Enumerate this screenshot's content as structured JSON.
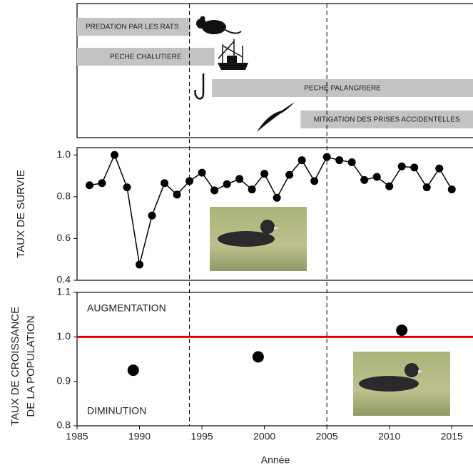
{
  "chart_data": [
    {
      "type": "timeline",
      "xlim": [
        1985,
        2016.7
      ],
      "events": [
        {
          "label": "PREDATION PAR LES RATS",
          "start": 1985,
          "end": 1994.1
        },
        {
          "label": "PECHE CHALUTIERE",
          "start": 1985,
          "end": 1996
        },
        {
          "label": "PECHE PALANGRIERE",
          "start": 1995.8,
          "end": 2016.7
        },
        {
          "label": "MITIGATION DES PRISES ACCIDENTELLES",
          "start": 2002.9,
          "end": 2016.7
        }
      ]
    },
    {
      "type": "line",
      "ylabel": "TAUX DE SURVIE",
      "xlim": [
        1985,
        2016.7
      ],
      "ylim": [
        0.4,
        1.035
      ],
      "yticks": [
        0.4,
        0.6,
        0.8,
        {
          "value": 1.0,
          "label": "1.0"
        }
      ],
      "x": [
        1986,
        1987,
        1988,
        1989,
        1990,
        1991,
        1992,
        1993,
        1994,
        1995,
        1996,
        1997,
        1998,
        1999,
        2000,
        2001,
        2002,
        2003,
        2004,
        2005,
        2006,
        2007,
        2008,
        2009,
        2010,
        2011,
        2012,
        2013,
        2014,
        2015
      ],
      "series": [
        {
          "color": "#000000",
          "values": [
            0.855,
            0.865,
            1.0,
            0.845,
            0.475,
            0.71,
            0.865,
            0.81,
            0.875,
            0.915,
            0.83,
            0.86,
            0.885,
            0.835,
            0.91,
            0.795,
            0.905,
            0.975,
            0.875,
            0.99,
            0.975,
            0.965,
            0.88,
            0.895,
            0.85,
            0.945,
            0.94,
            0.845,
            0.935,
            0.835
          ]
        }
      ]
    },
    {
      "type": "scatter",
      "ylabel": [
        "TAUX DE CROISSANCE",
        "DE LA POPULATION"
      ],
      "xlabel": "Année",
      "xlim": [
        1985,
        2016.7
      ],
      "ylim": [
        0.8,
        1.1
      ],
      "xticks": [
        1985,
        1990,
        1995,
        2000,
        2005,
        2010,
        2015
      ],
      "yticks": [
        0.8,
        0.9,
        {
          "value": 1.0,
          "label": "1.0"
        },
        1.1
      ],
      "hline": 1.0,
      "hline_color": "#e00000",
      "vlines": [
        1994,
        2005
      ],
      "annotations": [
        "AUGMENTATION",
        "DIMINUTION"
      ],
      "x": [
        1989.5,
        1999.5,
        2011
      ],
      "values": [
        0.925,
        0.955,
        1.015
      ],
      "color": "#000000"
    }
  ]
}
